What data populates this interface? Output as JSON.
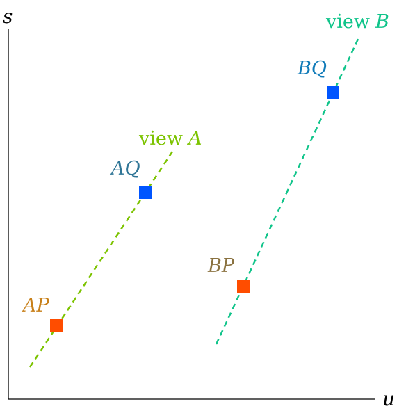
{
  "axes": {
    "x_label": "u",
    "y_label": "s"
  },
  "views": [
    {
      "id": "A",
      "word": "view",
      "letter": "A",
      "color": "#7cc300"
    },
    {
      "id": "B",
      "word": "view",
      "letter": "B",
      "color": "#10c48a"
    }
  ],
  "points": [
    {
      "id": "AP",
      "label": "AP",
      "color": "#ff4d00",
      "label_color": "#c8801a"
    },
    {
      "id": "AQ",
      "label": "AQ",
      "color": "#0055ff",
      "label_color": "#2f7596"
    },
    {
      "id": "BP",
      "label": "BP",
      "color": "#ff4d00",
      "label_color": "#8a7240"
    },
    {
      "id": "BQ",
      "label": "BQ",
      "color": "#0055ff",
      "label_color": "#0f7ab8"
    }
  ]
}
